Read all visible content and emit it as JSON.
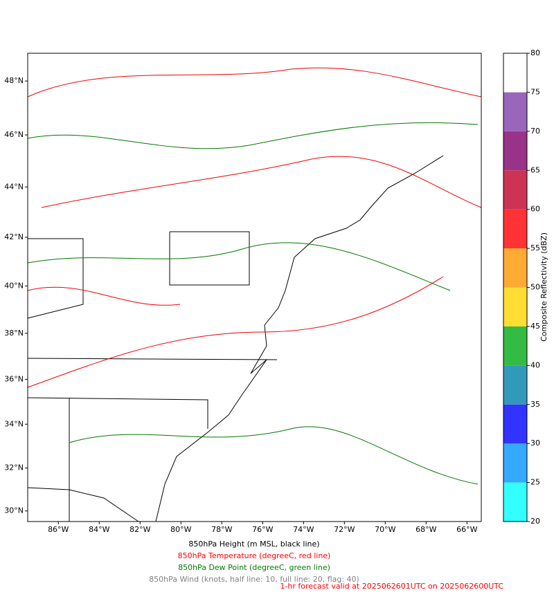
{
  "map": {
    "xlim": [
      -87.5,
      -65.3
    ],
    "ylim": [
      29.5,
      49
    ],
    "xticks": [
      {
        "value": -86,
        "label": "86°W"
      },
      {
        "value": -84,
        "label": "84°W"
      },
      {
        "value": -82,
        "label": "82°W"
      },
      {
        "value": -80,
        "label": "80°W"
      },
      {
        "value": -78,
        "label": "78°W"
      },
      {
        "value": -76,
        "label": "76°W"
      },
      {
        "value": -74,
        "label": "74°W"
      },
      {
        "value": -72,
        "label": "72°W"
      },
      {
        "value": -70,
        "label": "70°W"
      },
      {
        "value": -68,
        "label": "68°W"
      },
      {
        "value": -66,
        "label": "66°W"
      }
    ],
    "yticks": [
      {
        "value": 30,
        "label": "30°N"
      },
      {
        "value": 32,
        "label": "32°N"
      },
      {
        "value": 34,
        "label": "34°N"
      },
      {
        "value": 36,
        "label": "36°N"
      },
      {
        "value": 38,
        "label": "38°N"
      },
      {
        "value": 40,
        "label": "40°N"
      },
      {
        "value": 42,
        "label": "42°N"
      },
      {
        "value": 44,
        "label": "44°N"
      },
      {
        "value": 46,
        "label": "46°N"
      },
      {
        "value": 48,
        "label": "48°N"
      }
    ]
  },
  "colorbar": {
    "label": "Composite Reflectivity (dBZ)",
    "ticks": [
      20,
      25,
      30,
      35,
      40,
      45,
      50,
      55,
      60,
      65,
      70,
      75,
      80
    ],
    "colors": [
      "#33ffff",
      "#33aaff",
      "#3333ff",
      "#3399bb",
      "#33bb44",
      "#ffdd33",
      "#ffaa33",
      "#ff3333",
      "#cc3355",
      "#993388",
      "#9966bb",
      "#ffffff"
    ]
  },
  "captions": [
    {
      "text": "850hPa Height (m MSL, black line)",
      "color": "#000000"
    },
    {
      "text": "850hPa Temperature (degreeC, red line)",
      "color": "#ff0000"
    },
    {
      "text": "850hPa Dew Point (degreeC, green line)",
      "color": "#008000"
    },
    {
      "text": "850hPa Wind (knots, half line: 10, full line: 20, flag: 40)",
      "color": "#808080"
    },
    {
      "text": "1-hr forecast valid at 2025062601UTC on 2025062600UTC",
      "color": "#ff0000"
    }
  ]
}
